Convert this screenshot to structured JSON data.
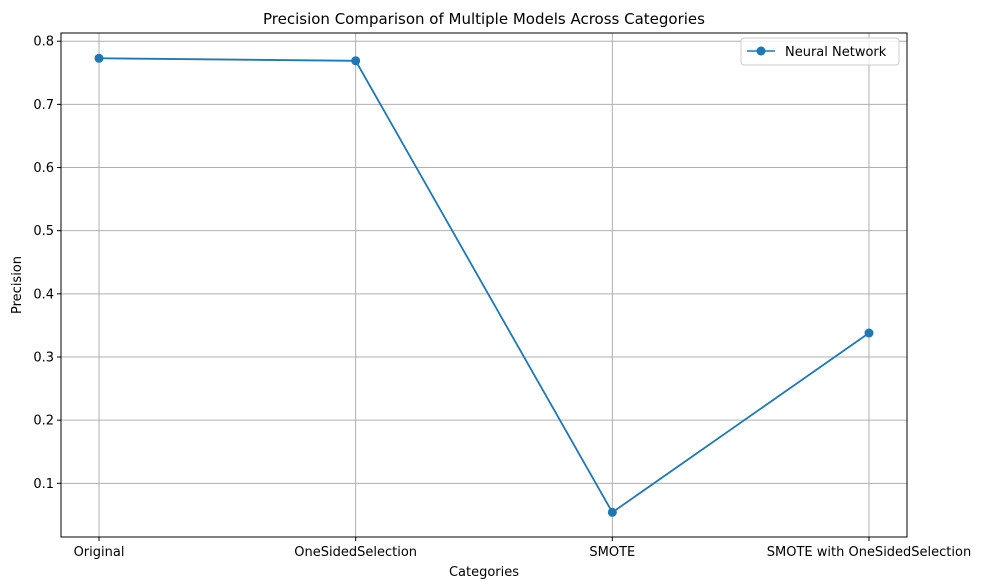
{
  "chart_data": {
    "type": "line",
    "title": "Precision Comparison of Multiple Models Across Categories",
    "xlabel": "Categories",
    "ylabel": "Precision",
    "categories": [
      "Original",
      "OneSidedSelection",
      "SMOTE",
      "SMOTE with OneSidedSelection"
    ],
    "series": [
      {
        "name": "Neural Network",
        "values": [
          0.773,
          0.769,
          0.054,
          0.338
        ],
        "color": "#1f77b4",
        "marker": "circle"
      }
    ],
    "ylim": [
      0.015,
      0.813
    ],
    "yticks": [
      "0.1",
      "0.2",
      "0.3",
      "0.4",
      "0.5",
      "0.6",
      "0.7",
      "0.8"
    ],
    "grid": true,
    "legend_position": "top-right"
  }
}
